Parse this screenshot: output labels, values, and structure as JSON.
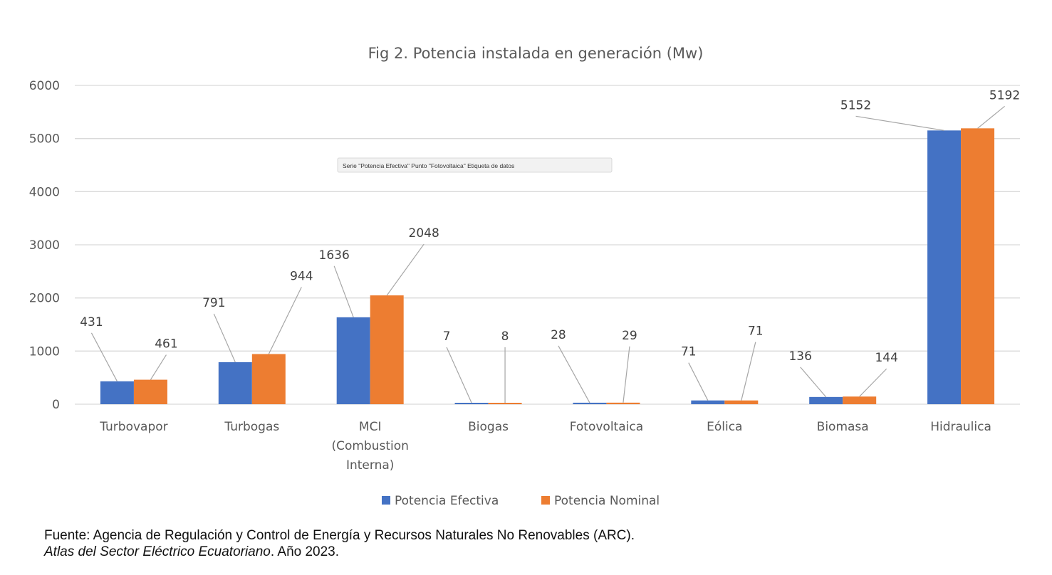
{
  "chart_data": {
    "type": "bar",
    "title": "Fig 2. Potencia instalada en generación (Mw)",
    "xlabel": "",
    "ylabel": "",
    "ylim": [
      0,
      6000
    ],
    "yticks": [
      0,
      1000,
      2000,
      3000,
      4000,
      5000,
      6000
    ],
    "grid": true,
    "legend_position": "bottom",
    "categories": [
      [
        "Turbovapor"
      ],
      [
        "Turbogas"
      ],
      [
        "MCI",
        "(Combustion",
        "Interna)"
      ],
      [
        "Biogas"
      ],
      [
        "Fotovoltaica"
      ],
      [
        "Eólica"
      ],
      [
        "Biomasa"
      ],
      [
        "Hidraulica"
      ]
    ],
    "series": [
      {
        "name": "Potencia Efectiva",
        "color": "#4472c4",
        "values": [
          431,
          791,
          1636,
          7,
          28,
          71,
          136,
          5152
        ]
      },
      {
        "name": "Potencia Nominal",
        "color": "#ed7d31",
        "values": [
          461,
          944,
          2048,
          8,
          29,
          71,
          144,
          5192
        ]
      }
    ],
    "tooltip": "Serie \"Potencia Efectiva\" Punto \"Fotovoltaica\" Etiqueta de datos"
  },
  "source": {
    "line1": "Fuente: Agencia de Regulación y Control de Energía y Recursos Naturales No Renovables (ARC).",
    "line2_italic": "Atlas del Sector Eléctrico Ecuatoriano",
    "line2_rest": ". Año 2023."
  }
}
